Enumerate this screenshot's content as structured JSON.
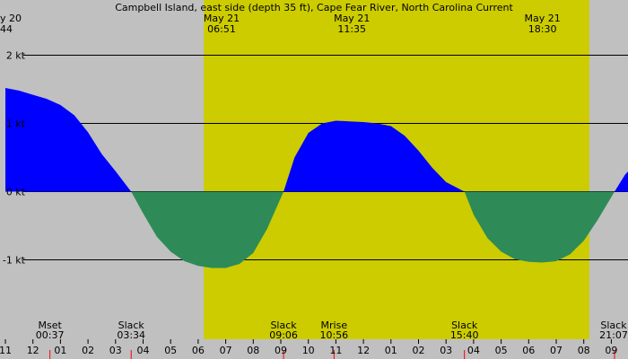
{
  "chart_data": {
    "type": "area",
    "title": "Campbell Island, east side (depth 35 ft), Cape Fear River, North Carolina Current",
    "y_unit": "kt",
    "ylim": [
      -1.86,
      2.6
    ],
    "y_ticks": [
      {
        "value": 2,
        "label": "2 kt"
      },
      {
        "value": 1,
        "label": "1 kt"
      },
      {
        "value": 0,
        "label": "0 kt"
      },
      {
        "value": -1,
        "label": "-1 kt"
      }
    ],
    "x_range_hours": [
      11.0,
      33.9
    ],
    "x_hour_ticks": [
      {
        "hour": 11,
        "label": "11"
      },
      {
        "hour": 12,
        "label": "12"
      },
      {
        "hour": 13,
        "label": "01"
      },
      {
        "hour": 14,
        "label": "02"
      },
      {
        "hour": 15,
        "label": "03"
      },
      {
        "hour": 16,
        "label": "04"
      },
      {
        "hour": 17,
        "label": "05"
      },
      {
        "hour": 18,
        "label": "06"
      },
      {
        "hour": 19,
        "label": "07"
      },
      {
        "hour": 20,
        "label": "08"
      },
      {
        "hour": 21,
        "label": "09"
      },
      {
        "hour": 22,
        "label": "10"
      },
      {
        "hour": 23,
        "label": "11"
      },
      {
        "hour": 24,
        "label": "12"
      },
      {
        "hour": 25,
        "label": "01"
      },
      {
        "hour": 26,
        "label": "02"
      },
      {
        "hour": 27,
        "label": "03"
      },
      {
        "hour": 28,
        "label": "04"
      },
      {
        "hour": 29,
        "label": "05"
      },
      {
        "hour": 30,
        "label": "06"
      },
      {
        "hour": 31,
        "label": "07"
      },
      {
        "hour": 32,
        "label": "08"
      },
      {
        "hour": 33,
        "label": "09"
      }
    ],
    "daylight": [
      {
        "start": 18.2,
        "end": 32.2
      }
    ],
    "top_labels": [
      {
        "hour": 11.0,
        "line1": "y 20",
        "line2": "44",
        "align": "start"
      },
      {
        "hour": 18.85,
        "line1": "May 21",
        "line2": "06:51",
        "align": "middle"
      },
      {
        "hour": 23.58,
        "line1": "May 21",
        "line2": "11:35",
        "align": "middle"
      },
      {
        "hour": 30.5,
        "line1": "May 21",
        "line2": "18:30",
        "align": "middle"
      }
    ],
    "events": [
      {
        "hour": 12.617,
        "name": "Mset",
        "time": "00:37"
      },
      {
        "hour": 15.567,
        "name": "Slack",
        "time": "03:34"
      },
      {
        "hour": 21.1,
        "name": "Slack",
        "time": "09:06"
      },
      {
        "hour": 22.933,
        "name": "Mrise",
        "time": "10:56"
      },
      {
        "hour": 27.667,
        "name": "Slack",
        "time": "15:40"
      },
      {
        "hour": 33.117,
        "name": "Slack",
        "time": "21:07"
      }
    ],
    "series": [
      {
        "x": [
          11.0,
          11.5,
          12.0,
          12.5,
          13.0,
          13.5,
          14.0,
          14.5,
          15.0,
          15.567,
          16.0,
          16.5,
          17.0,
          17.5,
          18.0,
          18.5,
          19.0,
          19.5,
          20.0,
          20.5,
          21.1,
          21.5,
          22.0,
          22.5,
          23.0,
          23.5,
          24.0,
          24.5,
          25.0,
          25.5,
          26.0,
          26.5,
          27.0,
          27.667,
          28.0,
          28.5,
          29.0,
          29.5,
          30.0,
          30.5,
          31.0,
          31.5,
          32.0,
          32.5,
          33.117,
          33.5,
          33.9
        ],
        "y": [
          1.52,
          1.48,
          1.42,
          1.36,
          1.27,
          1.12,
          0.87,
          0.55,
          0.3,
          0.0,
          -0.32,
          -0.66,
          -0.88,
          -1.02,
          -1.09,
          -1.12,
          -1.12,
          -1.06,
          -0.9,
          -0.55,
          0.0,
          0.5,
          0.86,
          1.0,
          1.04,
          1.03,
          1.02,
          1.0,
          0.96,
          0.82,
          0.6,
          0.35,
          0.14,
          0.0,
          -0.34,
          -0.68,
          -0.88,
          -0.99,
          -1.03,
          -1.04,
          -1.02,
          -0.92,
          -0.72,
          -0.42,
          0.0,
          0.25,
          0.42
        ]
      }
    ],
    "colors": {
      "background": "#c0c0c0",
      "daylight": "#cccc00",
      "flood": "#0000ff",
      "ebb": "#2e8b57"
    }
  }
}
